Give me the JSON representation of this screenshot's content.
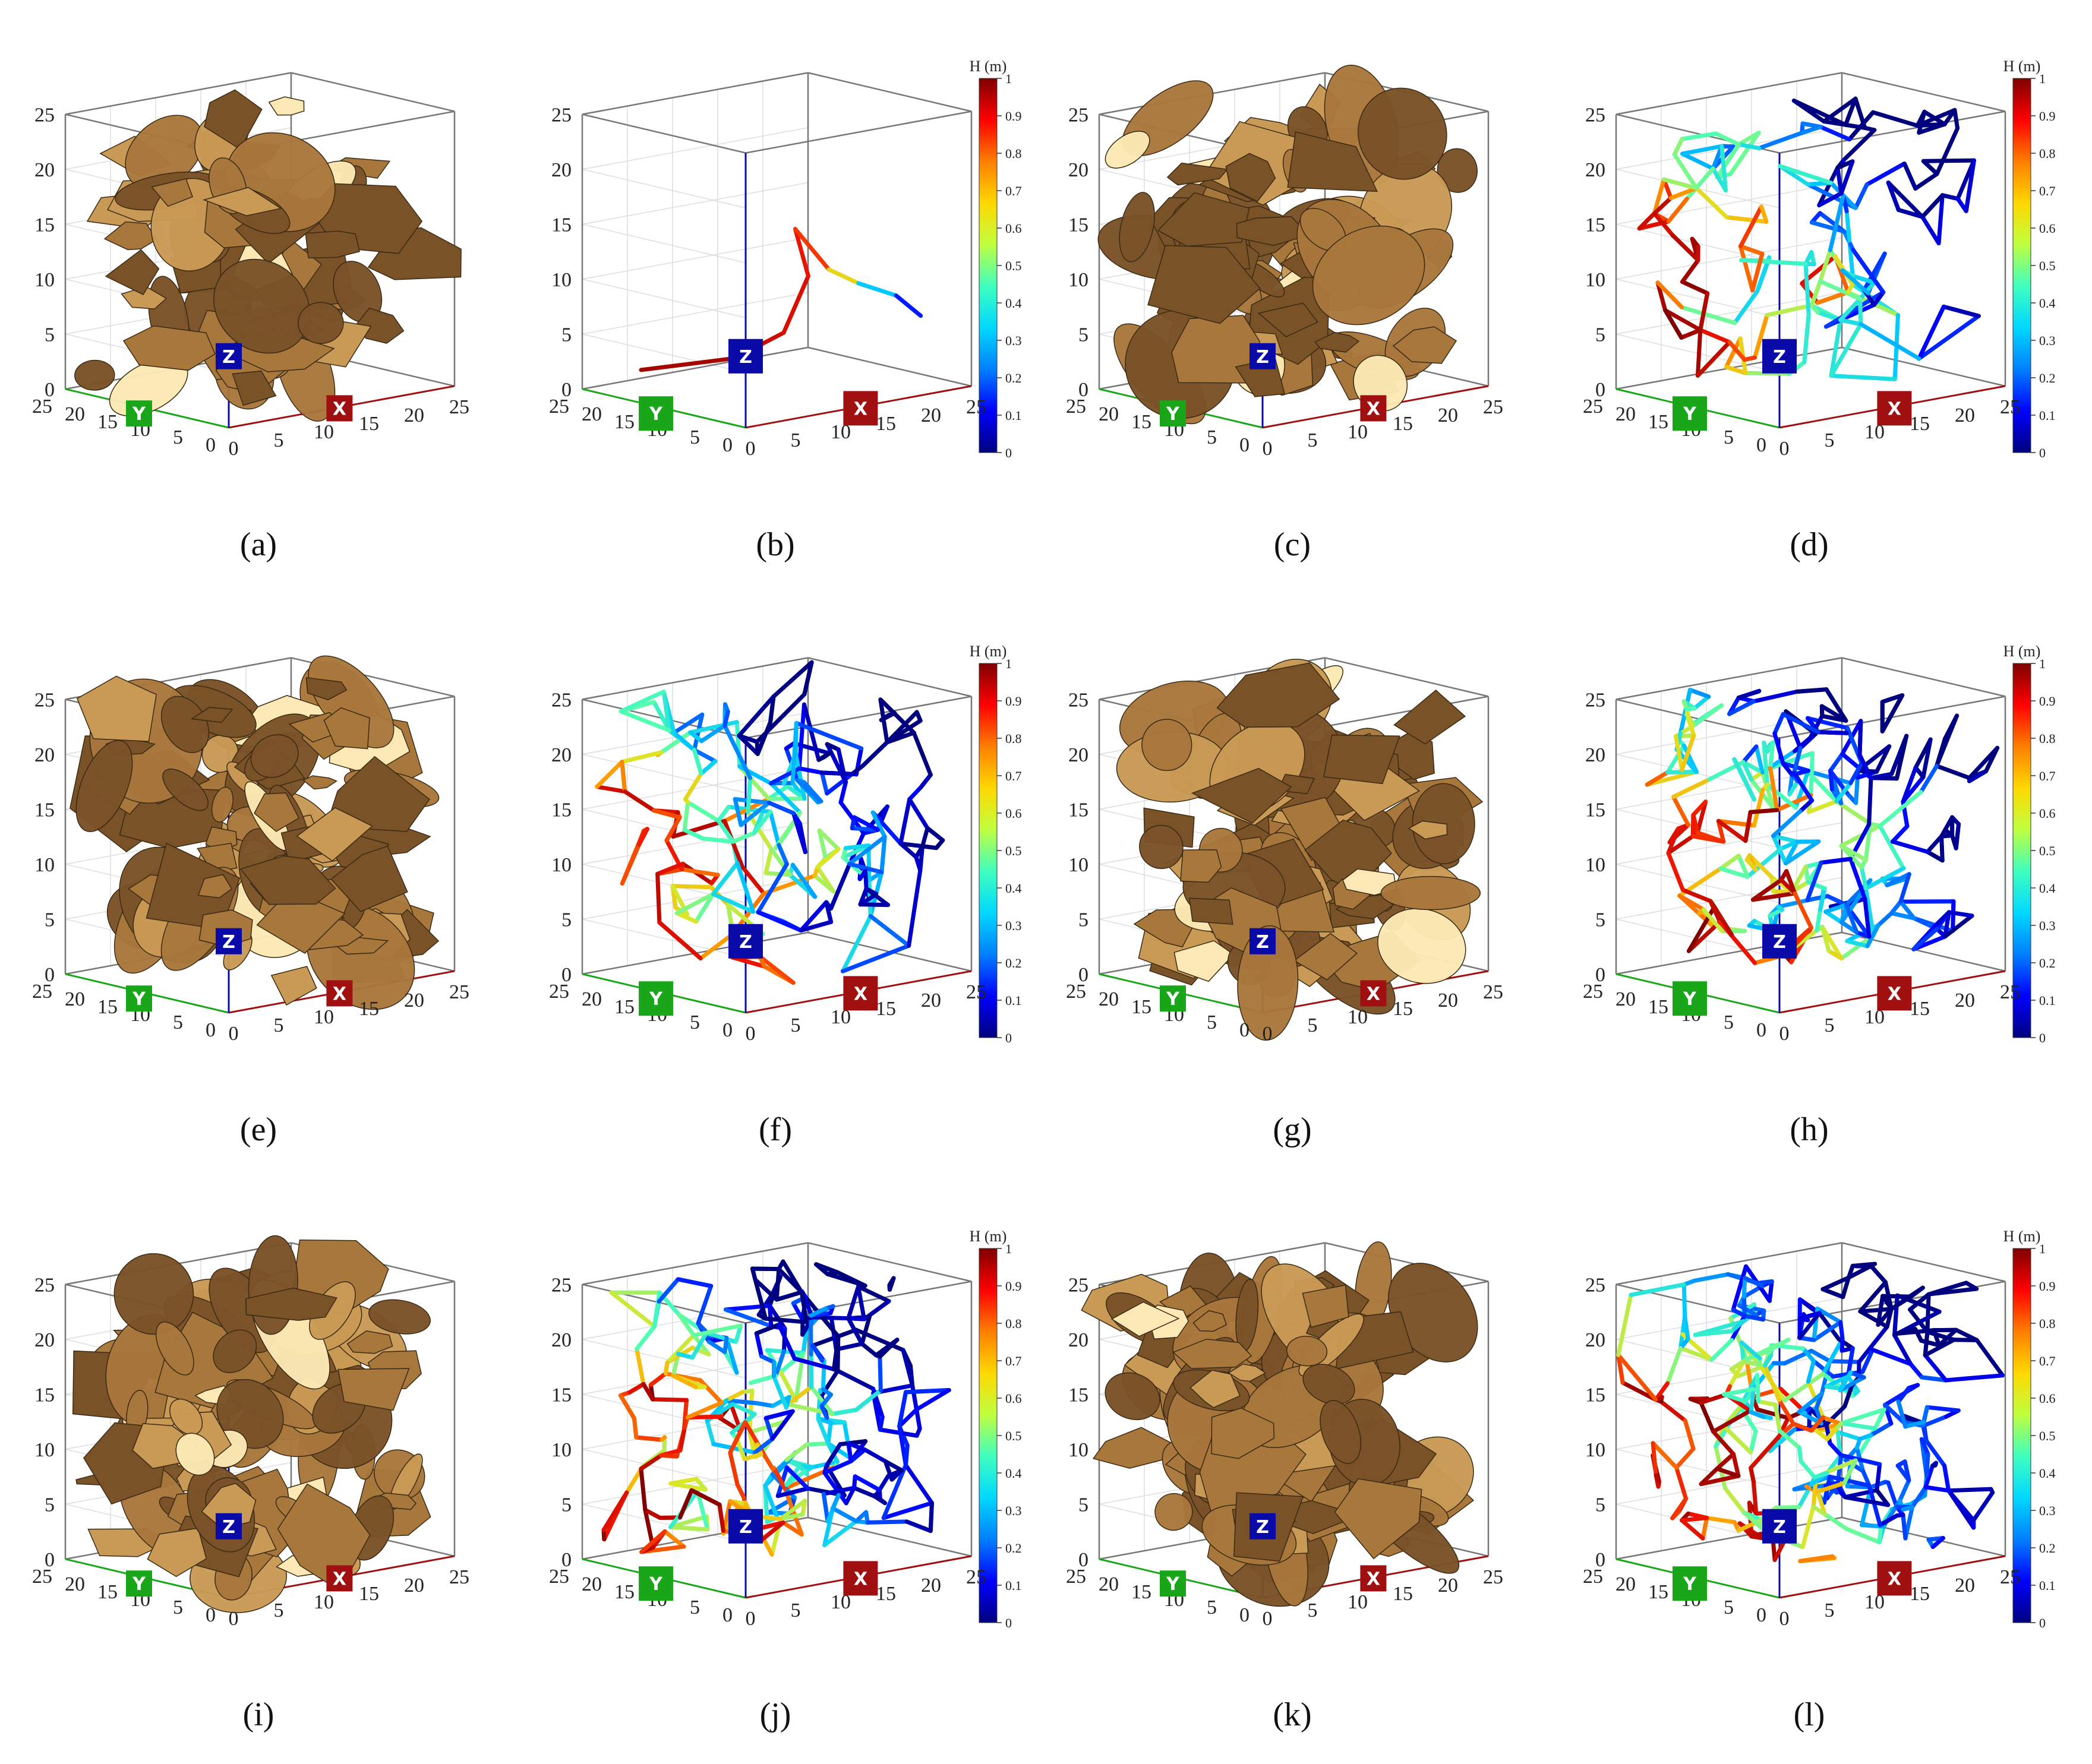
{
  "axis_ticks": [
    "0",
    "5",
    "10",
    "15",
    "20",
    "25"
  ],
  "axis_letters": {
    "x": "X",
    "y": "Y",
    "z": "Z"
  },
  "colorbar": {
    "title": "H (m)",
    "ticks": [
      "0",
      "0.1",
      "0.2",
      "0.3",
      "0.4",
      "0.5",
      "0.6",
      "0.7",
      "0.8",
      "0.9",
      "1"
    ],
    "colors": [
      "#00007f",
      "#0000ff",
      "#007fff",
      "#00d8ff",
      "#3fffbf",
      "#bfff3f",
      "#ffd800",
      "#ff7f00",
      "#ff0000",
      "#7f0000"
    ]
  },
  "colors": {
    "fracture_dark": "#7a5228",
    "fracture_mid": "#a8773c",
    "fracture_light": "#c99a55",
    "fracture_pale": "#fbe8b4",
    "x_axis": "#a01010",
    "y_axis": "#19a619",
    "z_axis": "#0a0aa8"
  },
  "panels": [
    {
      "label": "(a)",
      "type": "fractures",
      "density": 1
    },
    {
      "label": "(b)",
      "type": "pipes",
      "density": 1
    },
    {
      "label": "(c)",
      "type": "fractures",
      "density": 2
    },
    {
      "label": "(d)",
      "type": "pipes",
      "density": 2
    },
    {
      "label": "(e)",
      "type": "fractures",
      "density": 3
    },
    {
      "label": "(f)",
      "type": "pipes",
      "density": 3
    },
    {
      "label": "(g)",
      "type": "fractures",
      "density": 4
    },
    {
      "label": "(h)",
      "type": "pipes",
      "density": 4
    },
    {
      "label": "(i)",
      "type": "fractures",
      "density": 5
    },
    {
      "label": "(j)",
      "type": "pipes",
      "density": 5
    },
    {
      "label": "(k)",
      "type": "fractures",
      "density": 6
    },
    {
      "label": "(l)",
      "type": "pipes",
      "density": 6
    }
  ]
}
